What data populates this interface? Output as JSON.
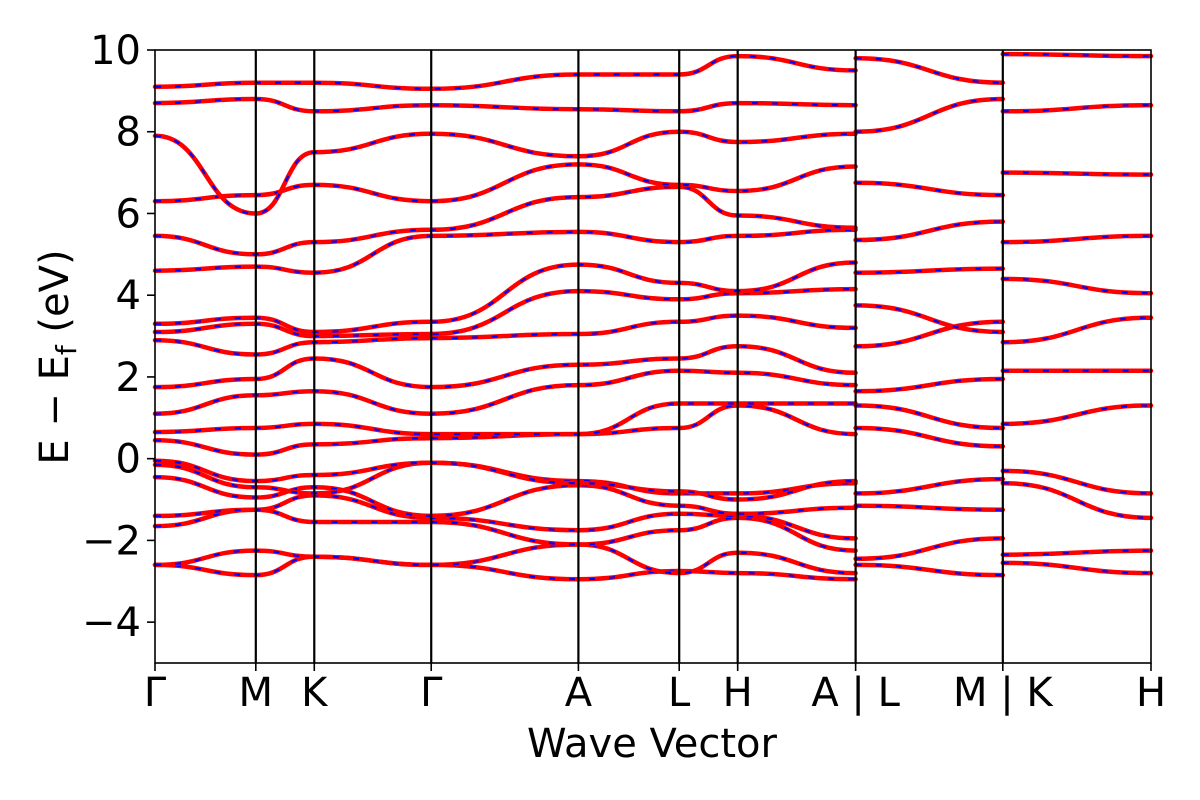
{
  "chart_data": {
    "type": "line",
    "title": "",
    "xlabel": "Wave Vector",
    "ylabel": "E − E",
    "ylabel_subscript": "f",
    "ylabel_unit": "(eV)",
    "ylim": [
      -5,
      10
    ],
    "yticks": [
      -4,
      -2,
      0,
      2,
      4,
      6,
      8,
      10
    ],
    "ytick_labels": [
      "−4",
      "−2",
      "0",
      "2",
      "4",
      "6",
      "8",
      "10"
    ],
    "xlim": [
      0,
      9.88
    ],
    "kpoints": [
      {
        "label": "Γ",
        "x": 0.0
      },
      {
        "label": "M",
        "x": 1.0
      },
      {
        "label": "K",
        "x": 1.58
      },
      {
        "label": "Γ",
        "x": 2.74
      },
      {
        "label": "A",
        "x": 4.2
      },
      {
        "label": "L",
        "x": 5.2
      },
      {
        "label": "H",
        "x": 5.78
      },
      {
        "label": "A | L",
        "x": 6.95
      },
      {
        "label": "M | K",
        "x": 8.41
      },
      {
        "label": "H",
        "x": 9.88
      }
    ],
    "vlines": [
      1.0,
      1.58,
      2.74,
      4.2,
      5.2,
      5.78,
      6.95,
      8.41
    ],
    "segment_breaks": [
      6.95,
      8.41
    ],
    "legend": "none",
    "grid": false,
    "series": [
      {
        "color": "#ff0000",
        "overlay_color": "#0000ff",
        "style": "solid with dashed overlay",
        "values": [
          {
            "x": [
              0,
              1.0,
              1.58,
              2.74,
              4.2,
              5.2,
              5.78,
              6.95
            ],
            "y": [
              -2.6,
              -2.85,
              -2.4,
              -2.6,
              -2.95,
              -2.75,
              -2.8,
              -2.95
            ]
          },
          {
            "x": [
              0,
              1.0,
              1.58,
              2.74,
              4.2,
              5.2,
              5.78,
              6.95
            ],
            "y": [
              -2.6,
              -2.25,
              -2.4,
              -2.6,
              -2.1,
              -2.8,
              -2.3,
              -2.8
            ]
          },
          {
            "x": [
              0,
              1.0,
              1.58,
              2.74,
              4.2,
              5.2,
              5.78,
              6.95
            ],
            "y": [
              -1.65,
              -1.25,
              -1.55,
              -1.55,
              -2.1,
              -1.75,
              -1.45,
              -2.25
            ]
          },
          {
            "x": [
              0,
              1.0,
              1.58,
              2.74,
              4.2,
              5.2,
              5.78,
              6.95
            ],
            "y": [
              -1.4,
              -1.25,
              -0.9,
              -1.45,
              -1.75,
              -1.35,
              -1.4,
              -1.95
            ]
          },
          {
            "x": [
              0,
              1.0,
              1.58,
              2.74,
              4.2,
              5.2,
              5.78,
              6.95
            ],
            "y": [
              -0.45,
              -0.95,
              -0.7,
              -1.4,
              -0.65,
              -1.15,
              -1.35,
              -1.2
            ]
          },
          {
            "x": [
              0,
              1.0,
              1.58,
              2.74,
              4.2,
              5.2,
              5.78,
              6.95
            ],
            "y": [
              -0.15,
              -0.7,
              -0.85,
              -0.1,
              -0.55,
              -0.85,
              -0.85,
              -0.6
            ]
          },
          {
            "x": [
              0,
              1.0,
              1.58,
              2.74,
              4.2,
              5.2,
              5.78,
              6.95
            ],
            "y": [
              -0.05,
              -0.55,
              -0.4,
              -0.1,
              -0.6,
              -0.8,
              -1.0,
              -0.55
            ]
          },
          {
            "x": [
              0,
              1.0,
              1.58,
              2.74,
              4.2,
              5.2,
              5.78,
              6.95
            ],
            "y": [
              0.45,
              0.1,
              0.35,
              0.5,
              0.6,
              0.75,
              1.3,
              0.6
            ]
          },
          {
            "x": [
              0,
              1.0,
              1.58,
              2.74,
              4.2,
              5.2,
              5.78,
              6.95
            ],
            "y": [
              0.65,
              0.75,
              0.85,
              0.6,
              0.6,
              1.35,
              1.35,
              1.35
            ]
          },
          {
            "x": [
              0,
              1.0,
              1.58,
              2.74,
              4.2,
              5.2,
              5.78,
              6.95
            ],
            "y": [
              1.1,
              1.55,
              1.65,
              1.1,
              1.8,
              2.15,
              2.1,
              1.8
            ]
          },
          {
            "x": [
              0,
              1.0,
              1.58,
              2.74,
              4.2,
              5.2,
              5.78,
              6.95
            ],
            "y": [
              1.75,
              1.95,
              2.45,
              1.75,
              2.3,
              2.45,
              2.75,
              2.1
            ]
          },
          {
            "x": [
              0,
              1.0,
              1.58,
              2.74,
              4.2,
              5.2,
              5.78,
              6.95
            ],
            "y": [
              2.9,
              2.55,
              2.85,
              2.95,
              3.05,
              3.35,
              3.5,
              3.2
            ]
          },
          {
            "x": [
              0,
              1.0,
              1.58,
              2.74,
              4.2,
              5.2,
              5.78,
              6.95
            ],
            "y": [
              3.1,
              3.3,
              3.0,
              3.05,
              4.1,
              3.9,
              4.05,
              4.15
            ]
          },
          {
            "x": [
              0,
              1.0,
              1.58,
              2.74,
              4.2,
              5.2,
              5.78,
              6.95
            ],
            "y": [
              3.3,
              3.45,
              3.1,
              3.35,
              4.75,
              4.3,
              4.1,
              4.8
            ]
          },
          {
            "x": [
              0,
              1.0,
              1.58,
              2.74,
              4.2,
              5.2,
              5.78,
              6.95
            ],
            "y": [
              4.6,
              4.7,
              4.55,
              5.45,
              5.55,
              5.3,
              5.45,
              5.6
            ]
          },
          {
            "x": [
              0,
              1.0,
              1.58,
              2.74,
              4.2,
              5.2,
              5.78,
              6.95
            ],
            "y": [
              5.45,
              5.0,
              5.3,
              5.6,
              6.4,
              6.65,
              5.95,
              5.65
            ]
          },
          {
            "x": [
              0,
              1.0,
              1.58,
              2.74,
              4.2,
              5.2,
              5.78,
              6.95
            ],
            "y": [
              6.3,
              6.45,
              6.7,
              6.3,
              7.2,
              6.7,
              6.55,
              7.15
            ]
          },
          {
            "x": [
              0,
              1.0,
              1.58,
              2.74,
              4.2,
              5.2,
              5.78,
              6.95
            ],
            "y": [
              7.9,
              6.0,
              7.5,
              7.95,
              7.4,
              8.0,
              7.75,
              7.95
            ]
          },
          {
            "x": [
              0,
              1.0,
              1.58,
              2.74,
              4.2,
              5.2,
              5.78,
              6.95
            ],
            "y": [
              8.7,
              8.8,
              8.5,
              8.65,
              8.55,
              8.5,
              8.7,
              8.65
            ]
          },
          {
            "x": [
              0,
              1.0,
              1.58,
              2.74,
              4.2,
              5.2,
              5.78,
              6.95
            ],
            "y": [
              9.1,
              9.2,
              9.2,
              9.05,
              9.4,
              9.4,
              9.85,
              9.5
            ]
          },
          {
            "x": [
              6.95,
              8.41
            ],
            "y": [
              -2.6,
              -2.85
            ]
          },
          {
            "x": [
              6.95,
              8.41
            ],
            "y": [
              -2.45,
              -1.95
            ]
          },
          {
            "x": [
              6.95,
              8.41
            ],
            "y": [
              -1.15,
              -1.25
            ]
          },
          {
            "x": [
              6.95,
              8.41
            ],
            "y": [
              -0.85,
              -0.5
            ]
          },
          {
            "x": [
              6.95,
              8.41
            ],
            "y": [
              0.75,
              0.3
            ]
          },
          {
            "x": [
              6.95,
              8.41
            ],
            "y": [
              1.3,
              0.75
            ]
          },
          {
            "x": [
              6.95,
              8.41
            ],
            "y": [
              1.65,
              1.95
            ]
          },
          {
            "x": [
              6.95,
              8.41
            ],
            "y": [
              2.75,
              3.35
            ]
          },
          {
            "x": [
              6.95,
              8.41
            ],
            "y": [
              3.75,
              3.1
            ]
          },
          {
            "x": [
              6.95,
              8.41
            ],
            "y": [
              4.55,
              4.65
            ]
          },
          {
            "x": [
              6.95,
              8.41
            ],
            "y": [
              5.35,
              5.8
            ]
          },
          {
            "x": [
              6.95,
              8.41
            ],
            "y": [
              6.75,
              6.45
            ]
          },
          {
            "x": [
              6.95,
              8.41
            ],
            "y": [
              8.0,
              8.8
            ]
          },
          {
            "x": [
              6.95,
              8.41
            ],
            "y": [
              9.8,
              9.2
            ]
          },
          {
            "x": [
              8.41,
              9.88
            ],
            "y": [
              -2.35,
              -2.25
            ]
          },
          {
            "x": [
              8.41,
              9.88
            ],
            "y": [
              -2.55,
              -2.8
            ]
          },
          {
            "x": [
              8.41,
              9.88
            ],
            "y": [
              -0.6,
              -1.45
            ]
          },
          {
            "x": [
              8.41,
              9.88
            ],
            "y": [
              -0.3,
              -0.85
            ]
          },
          {
            "x": [
              8.41,
              9.88
            ],
            "y": [
              0.85,
              1.3
            ]
          },
          {
            "x": [
              8.41,
              9.88
            ],
            "y": [
              2.15,
              2.15
            ]
          },
          {
            "x": [
              8.41,
              9.88
            ],
            "y": [
              2.85,
              3.45
            ]
          },
          {
            "x": [
              8.41,
              9.88
            ],
            "y": [
              4.4,
              4.05
            ]
          },
          {
            "x": [
              8.41,
              9.88
            ],
            "y": [
              5.3,
              5.45
            ]
          },
          {
            "x": [
              8.41,
              9.88
            ],
            "y": [
              7.0,
              6.95
            ]
          },
          {
            "x": [
              8.41,
              9.88
            ],
            "y": [
              8.5,
              8.65
            ]
          },
          {
            "x": [
              8.41,
              9.88
            ],
            "y": [
              9.9,
              9.85
            ]
          }
        ]
      }
    ]
  }
}
